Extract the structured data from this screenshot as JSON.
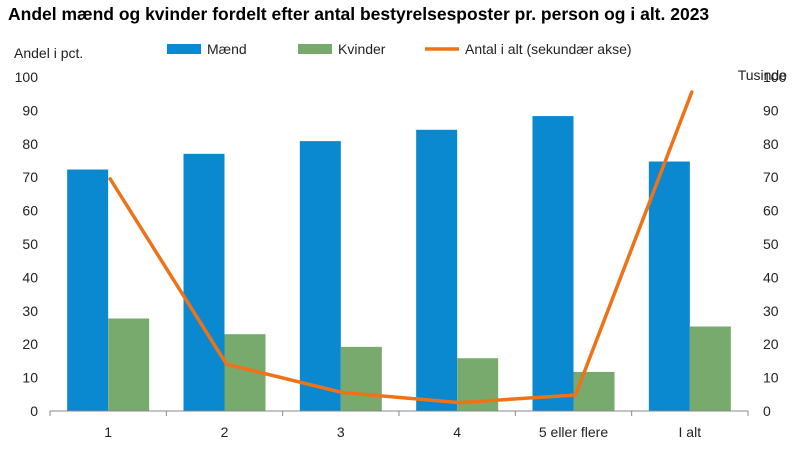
{
  "chart_data": {
    "type": "bar",
    "title": "Andel mænd og kvinder fordelt efter antal bestyrelsesposter pr. person og i alt. 2023",
    "ylabel": "Andel i pct.",
    "y2label": "Tusinde",
    "ylim": [
      0,
      100
    ],
    "y2lim": [
      0,
      100
    ],
    "yticks": [
      0,
      10,
      20,
      30,
      40,
      50,
      60,
      70,
      80,
      90,
      100
    ],
    "categories": [
      "1",
      "2",
      "3",
      "4",
      "5 eller flere",
      "I alt"
    ],
    "series": [
      {
        "name": "Mænd",
        "type": "bar",
        "axis": "primary",
        "color": "#0a88d0",
        "values": [
          72.3,
          77,
          80.8,
          84.2,
          88.3,
          74.7
        ]
      },
      {
        "name": "Kvinder",
        "type": "bar",
        "axis": "primary",
        "color": "#78aa6e",
        "values": [
          27.7,
          23,
          19.2,
          15.8,
          11.7,
          25.3
        ]
      },
      {
        "name": "Antal i alt (sekundær akse)",
        "type": "line",
        "axis": "secondary",
        "color": "#ee7318",
        "values": [
          69.5,
          14,
          5.5,
          2.5,
          4.8,
          95.5
        ]
      }
    ],
    "legend_position": "top",
    "grid": false
  }
}
